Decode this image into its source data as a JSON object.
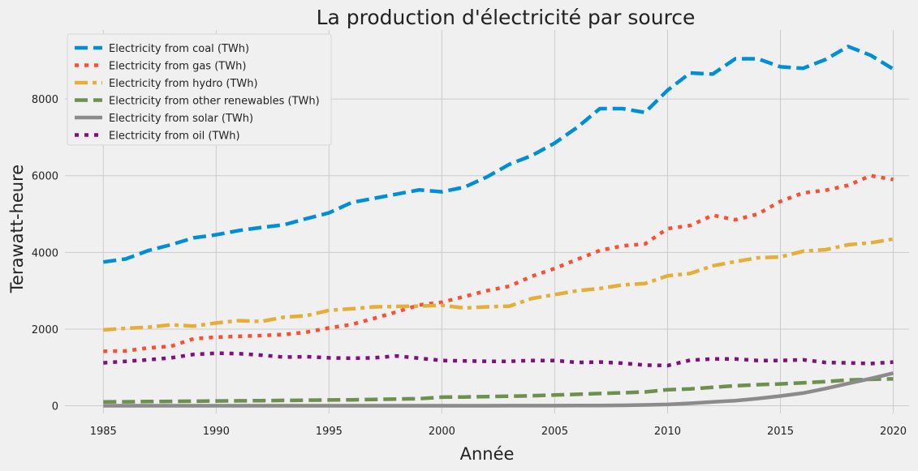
{
  "chart_data": {
    "type": "line",
    "title": "La production d'électricité par source",
    "xlabel": "Année",
    "ylabel": "Terawatt-heure",
    "xlim": [
      1983.3,
      2020.7
    ],
    "ylim": [
      -200,
      9800
    ],
    "x_ticks": [
      1985,
      1990,
      1995,
      2000,
      2005,
      2010,
      2015,
      2020
    ],
    "y_ticks": [
      0,
      2000,
      4000,
      6000,
      8000
    ],
    "grid": true,
    "legend_position": "upper-left",
    "x": [
      1985,
      1986,
      1987,
      1988,
      1989,
      1990,
      1991,
      1992,
      1993,
      1994,
      1995,
      1996,
      1997,
      1998,
      1999,
      2000,
      2001,
      2002,
      2003,
      2004,
      2005,
      2006,
      2007,
      2008,
      2009,
      2010,
      2011,
      2012,
      2013,
      2014,
      2015,
      2016,
      2017,
      2018,
      2019,
      2020
    ],
    "series": [
      {
        "name": "Electricity from coal (TWh)",
        "color": "#008fd5",
        "dash": "dashed",
        "values": [
          3750,
          3830,
          4050,
          4200,
          4380,
          4460,
          4570,
          4650,
          4720,
          4880,
          5030,
          5300,
          5410,
          5520,
          5630,
          5580,
          5700,
          5970,
          6300,
          6530,
          6850,
          7260,
          7750,
          7750,
          7650,
          8230,
          8680,
          8650,
          9050,
          9050,
          8840,
          8800,
          9030,
          9370,
          9140,
          8780
        ]
      },
      {
        "name": "Electricity from gas (TWh)",
        "color": "#fc4f30",
        "dash": "dotted",
        "values": [
          1420,
          1430,
          1510,
          1550,
          1750,
          1790,
          1810,
          1830,
          1860,
          1920,
          2030,
          2120,
          2280,
          2450,
          2630,
          2700,
          2850,
          3000,
          3120,
          3380,
          3580,
          3820,
          4050,
          4170,
          4220,
          4620,
          4700,
          4970,
          4850,
          5000,
          5330,
          5550,
          5620,
          5750,
          6000,
          5900
        ]
      },
      {
        "name": "Electricity from hydro (TWh)",
        "color": "#e5ae38",
        "dash": "dashdot",
        "values": [
          1980,
          2020,
          2050,
          2110,
          2080,
          2160,
          2220,
          2200,
          2310,
          2350,
          2490,
          2530,
          2580,
          2590,
          2600,
          2620,
          2550,
          2580,
          2600,
          2800,
          2900,
          3000,
          3060,
          3150,
          3190,
          3390,
          3450,
          3650,
          3760,
          3860,
          3880,
          4030,
          4070,
          4200,
          4250,
          4350
        ]
      },
      {
        "name": "Electricity from other renewables (TWh)",
        "color": "#6d904f",
        "dash": "dashed",
        "values": [
          100,
          105,
          110,
          115,
          120,
          125,
          130,
          135,
          140,
          145,
          150,
          155,
          165,
          175,
          185,
          225,
          230,
          240,
          250,
          260,
          280,
          300,
          320,
          340,
          360,
          420,
          440,
          480,
          520,
          550,
          570,
          600,
          630,
          670,
          690,
          700
        ]
      },
      {
        "name": "Electricity from solar (TWh)",
        "color": "#8b8b8b",
        "dash": "solid",
        "values": [
          0,
          0,
          0,
          0,
          0,
          0,
          0,
          0,
          0,
          0,
          0,
          0,
          0,
          0,
          0,
          1,
          1,
          1,
          2,
          3,
          4,
          6,
          8,
          12,
          21,
          34,
          65,
          100,
          135,
          190,
          255,
          330,
          450,
          580,
          710,
          850
        ]
      },
      {
        "name": "Electricity from oil (TWh)",
        "color": "#810f7c",
        "dash": "dotted",
        "values": [
          1120,
          1160,
          1200,
          1250,
          1340,
          1370,
          1360,
          1320,
          1270,
          1280,
          1250,
          1240,
          1250,
          1300,
          1240,
          1180,
          1170,
          1160,
          1160,
          1180,
          1180,
          1130,
          1140,
          1110,
          1060,
          1050,
          1190,
          1220,
          1220,
          1180,
          1180,
          1200,
          1130,
          1120,
          1100,
          1140
        ]
      }
    ]
  }
}
